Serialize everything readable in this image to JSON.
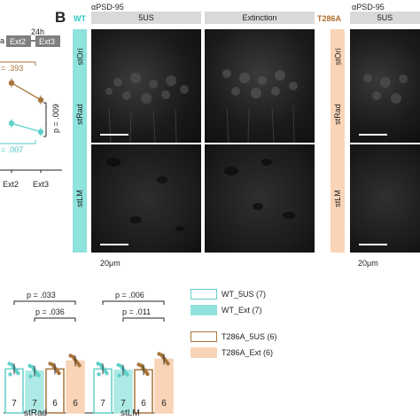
{
  "panelA": {
    "phase_tokens": [
      "a",
      "24h"
    ],
    "sessions": [
      "Ext2",
      "Ext3"
    ],
    "p_t286a": "= .393",
    "p_wt": "= .007",
    "p_between": "p = .009",
    "colors": {
      "wt": "#5fd3cc",
      "t286a": "#a8743a"
    },
    "chart_data": {
      "type": "line",
      "categories": [
        "Ext2",
        "Ext3"
      ],
      "series": [
        {
          "values": [
            0.82,
            0.66
          ]
        },
        {
          "values": [
            0.44,
            0.36
          ]
        }
      ],
      "note": "Fragment; y-axis not shown in crop."
    }
  },
  "panelB": {
    "label": "B",
    "groups": [
      {
        "label": "WT",
        "color": "#2ec9bf"
      },
      {
        "label": "T286A",
        "color": "#f6c9a6"
      }
    ],
    "antibody": "αPSD-95",
    "conditions": [
      "5US",
      "Extinction"
    ],
    "layers": [
      "stOri",
      "stRad",
      "stLM"
    ],
    "scale_bar": "20μm"
  },
  "panelC": {
    "legend": [
      {
        "label": "WT_5US (7)",
        "style": "outline",
        "color": "#62cfc8"
      },
      {
        "label": "WT_Ext (7)",
        "style": "fill",
        "color": "#8fe3dc"
      },
      {
        "label": "T286A_5US (6)",
        "style": "outline",
        "color": "#a8743a"
      },
      {
        "label": "T286A_Ext (6)",
        "style": "fill",
        "color": "#f9d4b6"
      }
    ],
    "colors": {
      "wt_5us": "#62cfc8",
      "wt_ext": "#aeeae5",
      "t286a_5us": "#a8743a",
      "t286a_ext": "#f9d4b6"
    },
    "chart_data": {
      "type": "bar",
      "groups": [
        "stRad",
        "stLM"
      ],
      "series": [
        {
          "name": "WT_5US (7)",
          "values": [
            1.0,
            1.0
          ],
          "n": 7
        },
        {
          "name": "WT_Ext (7)",
          "values": [
            0.95,
            0.97
          ],
          "n": 7
        },
        {
          "name": "T286A_5US (6)",
          "values": [
            1.0,
            0.98
          ],
          "n": 6
        },
        {
          "name": "T286A_Ext (6)",
          "values": [
            1.18,
            1.22
          ],
          "n": 6
        }
      ],
      "n_labels": [
        "7",
        "7",
        "6",
        "6"
      ],
      "stats": {
        "stRad": [
          "p = .033",
          "p = .036"
        ],
        "stLM": [
          "p = .006",
          "p = .011"
        ]
      }
    }
  }
}
